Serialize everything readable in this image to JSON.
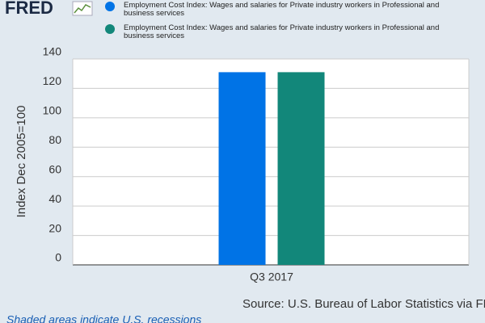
{
  "logo": "FRED",
  "chart_data": {
    "type": "bar",
    "categories": [
      "Q3 2017"
    ],
    "series": [
      {
        "name": "Employment Cost Index: Wages and salaries for Private industry workers in Professional and business services",
        "color": "#0073e6",
        "values": [
          131
        ]
      },
      {
        "name": "Employment Cost Index: Wages and salaries for Private industry workers in Professional and business services",
        "color": "#12877a",
        "values": [
          131
        ]
      }
    ],
    "ylabel": "Index Dec 2005=100",
    "ylim": [
      0,
      140
    ],
    "yticks": [
      0,
      20,
      40,
      60,
      80,
      100,
      120,
      140
    ],
    "grid": true
  },
  "source": "Source: U.S. Bureau of Labor Statistics via FRED®",
  "note": "Shaded areas indicate U.S. recessions"
}
